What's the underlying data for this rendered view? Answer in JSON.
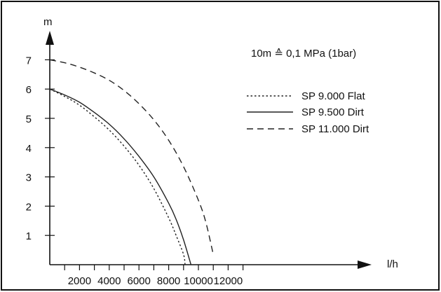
{
  "chart_data": {
    "type": "line",
    "title": "",
    "xlabel": "l/h",
    "ylabel": "m",
    "note": "10m ≙ 0,1 MPa (1bar)",
    "xlim": [
      0,
      14000
    ],
    "ylim": [
      0,
      8
    ],
    "xticks": [
      2000,
      4000,
      6000,
      8000,
      10000,
      12000
    ],
    "x_minor_ticks": [
      1000,
      3000,
      5000,
      7000,
      9000,
      11000,
      13000
    ],
    "yticks": [
      1,
      2,
      3,
      4,
      5,
      6,
      7
    ],
    "grid": false,
    "legend_position": "top-right",
    "series": [
      {
        "name": "SP 9.000 Flat",
        "style": "dotted",
        "x": [
          0,
          1000,
          2000,
          3000,
          4000,
          5000,
          6000,
          7000,
          8000,
          8500,
          9000,
          9100
        ],
        "y": [
          6.0,
          5.75,
          5.45,
          5.05,
          4.6,
          4.05,
          3.4,
          2.6,
          1.6,
          1.0,
          0.35,
          0
        ]
      },
      {
        "name": "SP 9.500 Dirt",
        "style": "solid",
        "x": [
          0,
          1000,
          2000,
          3000,
          4000,
          5000,
          6000,
          7000,
          8000,
          8500,
          9000,
          9500
        ],
        "y": [
          6.0,
          5.8,
          5.55,
          5.2,
          4.8,
          4.3,
          3.7,
          3.0,
          2.1,
          1.55,
          0.85,
          0
        ]
      },
      {
        "name": "SP 11.000 Dirt",
        "style": "dashed",
        "x": [
          0,
          1000,
          2000,
          3000,
          4000,
          5000,
          6000,
          7000,
          8000,
          9000,
          10000,
          10500,
          11000
        ],
        "y": [
          7.0,
          6.9,
          6.75,
          6.55,
          6.3,
          5.95,
          5.5,
          4.95,
          4.25,
          3.35,
          2.2,
          1.45,
          0.35
        ]
      }
    ]
  },
  "colors": {
    "frame": "#111111",
    "curve": "#222222"
  }
}
